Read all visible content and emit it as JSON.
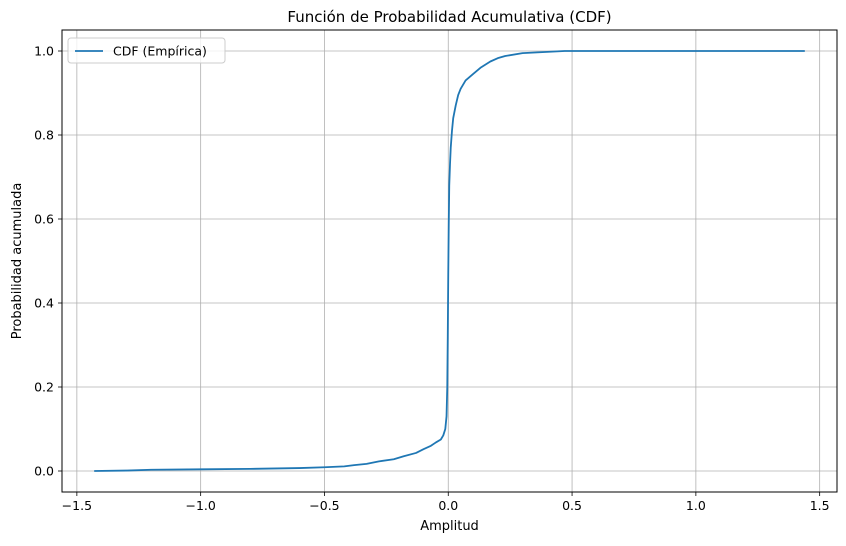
{
  "chart_data": {
    "type": "line",
    "title": "Función de Probabilidad Acumulativa (CDF)",
    "xlabel": "Amplitud",
    "ylabel": "Probabilidad acumulada",
    "xlim": [
      -1.56,
      1.57
    ],
    "ylim": [
      -0.05,
      1.05
    ],
    "xticks": [
      -1.5,
      -1.0,
      -0.5,
      0.0,
      0.5,
      1.0,
      1.5
    ],
    "xtick_labels": [
      "−1.5",
      "−1.0",
      "−0.5",
      "0.0",
      "0.5",
      "1.0",
      "1.5"
    ],
    "yticks": [
      0.0,
      0.2,
      0.4,
      0.6,
      0.8,
      1.0
    ],
    "ytick_labels": [
      "0.0",
      "0.2",
      "0.4",
      "0.6",
      "0.8",
      "1.0"
    ],
    "grid": true,
    "legend_position": "upper-left",
    "colors": {
      "series": "#1f77b4",
      "grid": "#b0b0b0",
      "axes": "#000000"
    },
    "series": [
      {
        "name": "CDF (Empírica)",
        "x": [
          -1.43,
          -1.3,
          -1.2,
          -1.0,
          -0.8,
          -0.6,
          -0.5,
          -0.42,
          -0.38,
          -0.33,
          -0.28,
          -0.22,
          -0.18,
          -0.13,
          -0.1,
          -0.07,
          -0.05,
          -0.03,
          -0.02,
          -0.012,
          -0.007,
          -0.004,
          -0.002,
          0.0,
          0.002,
          0.004,
          0.007,
          0.01,
          0.015,
          0.02,
          0.03,
          0.04,
          0.05,
          0.07,
          0.1,
          0.13,
          0.17,
          0.2,
          0.23,
          0.3,
          0.4,
          0.47,
          0.6,
          0.8,
          1.0,
          1.2,
          1.44
        ],
        "y": [
          0.0,
          0.001,
          0.003,
          0.004,
          0.005,
          0.007,
          0.009,
          0.011,
          0.014,
          0.017,
          0.023,
          0.028,
          0.035,
          0.043,
          0.052,
          0.06,
          0.068,
          0.075,
          0.085,
          0.1,
          0.13,
          0.2,
          0.32,
          0.47,
          0.59,
          0.68,
          0.73,
          0.77,
          0.81,
          0.84,
          0.87,
          0.895,
          0.91,
          0.93,
          0.945,
          0.96,
          0.975,
          0.983,
          0.988,
          0.995,
          0.998,
          1.0,
          1.0,
          1.0,
          1.0,
          1.0,
          1.0
        ]
      }
    ]
  }
}
